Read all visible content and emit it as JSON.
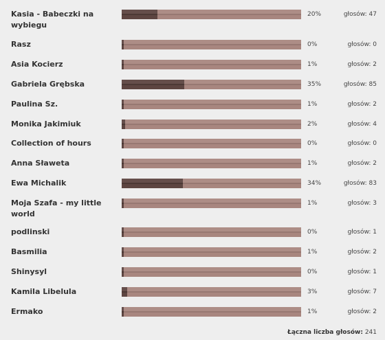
{
  "poll": {
    "votes_prefix": "głosów: ",
    "total_label": "Łączna liczba głosów:",
    "total_value": "241",
    "options": [
      {
        "label": "Kasia - Babeczki na wybiegu",
        "percent": "20%",
        "share": 0.2,
        "votes": "47"
      },
      {
        "label": "Rasz",
        "percent": "0%",
        "share": 0.0,
        "votes": "0"
      },
      {
        "label": "Asia Kocierz",
        "percent": "1%",
        "share": 0.01,
        "votes": "2"
      },
      {
        "label": "Gabriela Grębska",
        "percent": "35%",
        "share": 0.35,
        "votes": "85"
      },
      {
        "label": "Paulina Sz.",
        "percent": "1%",
        "share": 0.01,
        "votes": "2"
      },
      {
        "label": "Monika Jakimiuk",
        "percent": "2%",
        "share": 0.02,
        "votes": "4"
      },
      {
        "label": "Collection of hours",
        "percent": "0%",
        "share": 0.0,
        "votes": "0"
      },
      {
        "label": "Anna Sławeta",
        "percent": "1%",
        "share": 0.01,
        "votes": "2"
      },
      {
        "label": "Ewa Michalik",
        "percent": "34%",
        "share": 0.34,
        "votes": "83"
      },
      {
        "label": "Moja Szafa - my little world",
        "percent": "1%",
        "share": 0.01,
        "votes": "3"
      },
      {
        "label": "podlinski",
        "percent": "0%",
        "share": 0.0,
        "votes": "1"
      },
      {
        "label": "Basmilia",
        "percent": "1%",
        "share": 0.01,
        "votes": "2"
      },
      {
        "label": "Shinysyl",
        "percent": "0%",
        "share": 0.0,
        "votes": "1"
      },
      {
        "label": "Kamila Libelula",
        "percent": "3%",
        "share": 0.03,
        "votes": "7"
      },
      {
        "label": "Ermako",
        "percent": "1%",
        "share": 0.01,
        "votes": "2"
      }
    ]
  }
}
